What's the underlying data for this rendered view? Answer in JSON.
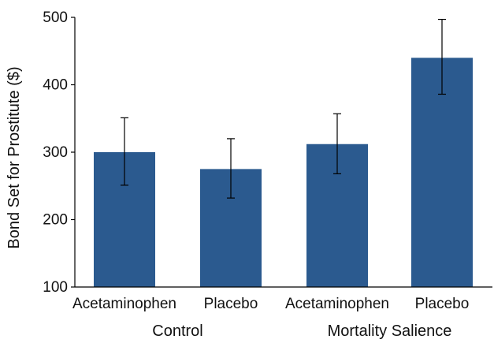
{
  "chart_data": {
    "type": "bar",
    "categories": [
      "Acetaminophen",
      "Placebo",
      "Acetaminophen",
      "Placebo"
    ],
    "groups": [
      {
        "label": "Control",
        "categories": [
          0,
          1
        ]
      },
      {
        "label": "Mortality Salience",
        "categories": [
          2,
          3
        ]
      }
    ],
    "values": [
      300,
      275,
      312,
      440
    ],
    "error_low": [
      251,
      232,
      268,
      386
    ],
    "error_high": [
      351,
      320,
      357,
      497
    ],
    "ylabel": "Bond Set for Prostitute ($)",
    "xlabel": "",
    "ylim": [
      100,
      500
    ],
    "yticks": [
      100,
      200,
      300,
      400,
      500
    ],
    "bar_color": "#2b5a8f",
    "grid": false
  }
}
